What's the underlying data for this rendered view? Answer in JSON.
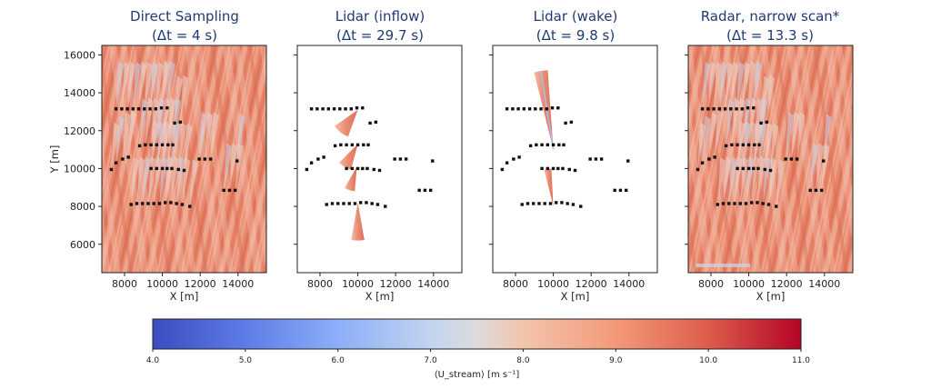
{
  "chart_data": {
    "type": "heatmap",
    "ylabel": "Y [m]",
    "xlabel": "X [m]",
    "xlim": [
      6800,
      15500
    ],
    "ylim": [
      4500,
      16500
    ],
    "x_ticks": [
      8000,
      10000,
      12000,
      14000
    ],
    "y_ticks": [
      6000,
      8000,
      10000,
      12000,
      14000,
      16000
    ],
    "panels": [
      {
        "title": "Direct Sampling",
        "subtitle": "(Δt = 4 s)",
        "field": "full-domain",
        "mean_ustream": 9.3,
        "scan_cones": []
      },
      {
        "title": "Lidar (inflow)",
        "subtitle": "(Δt = 29.7 s)",
        "field": "scan-cones",
        "scan_cones": [
          {
            "apex": [
              10000,
              8200
            ],
            "angle_from_deg": 260,
            "angle_to_deg": 280,
            "radius": 2000
          },
          {
            "apex": [
              10000,
              13100
            ],
            "angle_from_deg": 215,
            "angle_to_deg": 250,
            "radius": 1500
          },
          {
            "apex": [
              10000,
              11300
            ],
            "angle_from_deg": 225,
            "angle_to_deg": 255,
            "radius": 1400
          },
          {
            "apex": [
              9950,
              10100
            ],
            "angle_from_deg": 240,
            "angle_to_deg": 265,
            "radius": 1300
          }
        ]
      },
      {
        "title": "Lidar (wake)",
        "subtitle": "(Δt = 9.8 s)",
        "field": "scan-cones",
        "scan_cones": [
          {
            "apex": [
              10000,
              11000
            ],
            "angle_from_deg": 94,
            "angle_to_deg": 104,
            "radius": 4200
          },
          {
            "apex": [
              10000,
              8000
            ],
            "angle_from_deg": 93,
            "angle_to_deg": 104,
            "radius": 2000
          }
        ]
      },
      {
        "title": "Radar, narrow scan*",
        "subtitle": "(Δt = 13.3 s)",
        "field": "full-domain",
        "mean_ustream": 9.2,
        "scan_cones": []
      }
    ],
    "turbines": [
      [
        7550,
        13150
      ],
      [
        7850,
        13150
      ],
      [
        8150,
        13150
      ],
      [
        8450,
        13150
      ],
      [
        8750,
        13150
      ],
      [
        9050,
        13150
      ],
      [
        9350,
        13150
      ],
      [
        9650,
        13150
      ],
      [
        9950,
        13200
      ],
      [
        10250,
        13200
      ],
      [
        10650,
        12400
      ],
      [
        10950,
        12450
      ],
      [
        8800,
        11200
      ],
      [
        9100,
        11250
      ],
      [
        9400,
        11250
      ],
      [
        9700,
        11250
      ],
      [
        10000,
        11250
      ],
      [
        10300,
        11250
      ],
      [
        10550,
        11250
      ],
      [
        7900,
        10500
      ],
      [
        8200,
        10600
      ],
      [
        7550,
        10300
      ],
      [
        7300,
        9950
      ],
      [
        9400,
        10000
      ],
      [
        9700,
        10000
      ],
      [
        10000,
        10000
      ],
      [
        10250,
        10000
      ],
      [
        10500,
        10000
      ],
      [
        10850,
        9950
      ],
      [
        11150,
        9900
      ],
      [
        11950,
        10500
      ],
      [
        12250,
        10500
      ],
      [
        12550,
        10500
      ],
      [
        13950,
        10400
      ],
      [
        8350,
        8100
      ],
      [
        8650,
        8150
      ],
      [
        8950,
        8150
      ],
      [
        9250,
        8150
      ],
      [
        9550,
        8150
      ],
      [
        9850,
        8150
      ],
      [
        10150,
        8200
      ],
      [
        10450,
        8200
      ],
      [
        10750,
        8150
      ],
      [
        11050,
        8100
      ],
      [
        11450,
        8000
      ],
      [
        13250,
        8850
      ],
      [
        13550,
        8850
      ],
      [
        13850,
        8850
      ]
    ],
    "colorbar": {
      "label": "⟨U_stream⟩ [m s⁻¹]",
      "min": 4.0,
      "max": 11.0,
      "ticks": [
        "4.0",
        "5.0",
        "6.0",
        "7.0",
        "8.0",
        "9.0",
        "10.0",
        "11.0"
      ],
      "colormap": "coolwarm"
    }
  }
}
